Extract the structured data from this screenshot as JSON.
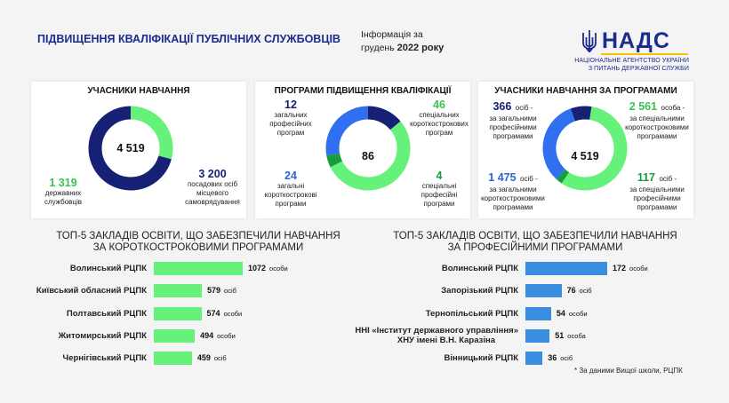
{
  "header": {
    "title": "ПІДВИЩЕННЯ КВАЛІФІКАЦІЇ ПУБЛІЧНИХ СЛУЖБОВЦІВ",
    "info_line1": "Інформація за",
    "info_line2_prefix": "грудень",
    "info_line2_bold": "2022 року"
  },
  "logo": {
    "name": "НАДС",
    "sub1": "НАЦІОНАЛЬНЕ АГЕНТСТВО УКРАЇНИ",
    "sub2": "З ПИТАНЬ ДЕРЖАВНОЇ СЛУЖБИ"
  },
  "colors": {
    "navy": "#162074",
    "green": "#66f27a",
    "blue": "#2f6ff0",
    "dark_green": "#169e3c",
    "bar_green": "#66f27a",
    "bar_blue": "#3a8ee0"
  },
  "panels": {
    "participants": {
      "title": "УЧАСНИКИ НАВЧАННЯ",
      "total": "4 519",
      "left_num": "1 319",
      "left_l1": "державних",
      "left_l2": "службовців",
      "right_num": "3 200",
      "right_l1": "посадових осіб",
      "right_l2": "місцевого",
      "right_l3": "самоврядування"
    },
    "programs": {
      "title": "ПРОГРАМИ ПІДВИЩЕННЯ КВАЛІФІКАЦІЇ",
      "total": "86",
      "tl_num": "12",
      "tl_l1": "загальних",
      "tl_l2": "професійних",
      "tl_l3": "програм",
      "tr_num": "46",
      "tr_l1": "спеціальних",
      "tr_l2": "короткострокових",
      "tr_l3": "програм",
      "bl_num": "24",
      "bl_l1": "загальні",
      "bl_l2": "короткострокові",
      "bl_l3": "програми",
      "br_num": "4",
      "br_l1": "спеціальні",
      "br_l2": "професійні",
      "br_l3": "програми"
    },
    "by_program": {
      "title": "УЧАСНИКИ НАВЧАННЯ ЗА ПРОГРАМАМИ",
      "total": "4 519",
      "tl_num": "366",
      "tl_suffix": "осіб -",
      "tl_l1": "за загальними",
      "tl_l2": "професійними",
      "tl_l3": "програмами",
      "tr_num": "2 561",
      "tr_suffix": "особа -",
      "tr_l1": "за спеціальними",
      "tr_l2": "короткостроковими",
      "tr_l3": "програмами",
      "bl_num": "1 475",
      "bl_suffix": "осіб -",
      "bl_l1": "за загальними",
      "bl_l2": "короткостроковими",
      "bl_l3": "програмами",
      "br_num": "117",
      "br_suffix": "осіб -",
      "br_l1": "за спеціальними",
      "br_l2": "професійними",
      "br_l3": "програмами"
    }
  },
  "sections": {
    "left_title1": "ТОП-5 ЗАКЛАДІВ ОСВІТИ, ЩО ЗАБЕЗПЕЧИЛИ НАВЧАННЯ",
    "left_title2": "ЗА КОРОТКОСТРОКОВИМИ ПРОГРАМАМИ",
    "right_title1": "ТОП-5 ЗАКЛАДІВ ОСВІТИ, ЩО ЗАБЕЗПЕЧИЛИ НАВЧАННЯ",
    "right_title2": "ЗА ПРОФЕСІЙНИМИ ПРОГРАМАМИ"
  },
  "footnote": "* За даними Вищої школи, РЦПК",
  "chart_data": [
    {
      "type": "pie",
      "title": "УЧАСНИКИ НАВЧАННЯ",
      "center": "4 519",
      "labels": [
        "державних службовців",
        "посадових осіб місцевого самоврядування"
      ],
      "values": [
        1319,
        3200
      ]
    },
    {
      "type": "pie",
      "title": "ПРОГРАМИ ПІДВИЩЕННЯ КВАЛІФІКАЦІЇ",
      "center": "86",
      "labels": [
        "загальних професійних програм",
        "спеціальних короткострокових програм",
        "спеціальні професійні програми",
        "загальні короткострокові програми"
      ],
      "values": [
        12,
        46,
        4,
        24
      ]
    },
    {
      "type": "pie",
      "title": "УЧАСНИКИ НАВЧАННЯ ЗА ПРОГРАМАМИ",
      "center": "4 519",
      "labels": [
        "за загальними професійними програмами",
        "за спеціальними короткостроковими програмами",
        "за спеціальними професійними програмами",
        "за загальними короткостроковими програмами"
      ],
      "values": [
        366,
        2561,
        117,
        1475
      ]
    },
    {
      "type": "bar",
      "title": "ТОП-5 ЗАКЛАДІВ ОСВІТИ, ЩО ЗАБЕЗПЕЧИЛИ НАВЧАННЯ ЗА КОРОТКОСТРОКОВИМИ ПРОГРАМАМИ",
      "categories": [
        "Волинський РЦПК",
        "Київський обласний РЦПК",
        "Полтавський РЦПК",
        "Житомирський РЦПК",
        "Чернігівський РЦПК"
      ],
      "values": [
        1072,
        579,
        574,
        494,
        459
      ],
      "units": [
        "особи",
        "осіб",
        "особи",
        "особи",
        "осіб"
      ]
    },
    {
      "type": "bar",
      "title": "ТОП-5 ЗАКЛАДІВ ОСВІТИ, ЩО ЗАБЕЗПЕЧИЛИ НАВЧАННЯ ЗА ПРОФЕСІЙНИМИ ПРОГРАМАМИ",
      "categories": [
        "Волинський РЦПК",
        "Запорізький РЦПК",
        "Тернопільський РЦПК",
        "ННІ «Інститут державного управління» ХНУ імені В.Н. Каразіна",
        "Вінницький РЦПК"
      ],
      "values": [
        172,
        76,
        54,
        51,
        36
      ],
      "units": [
        "особи",
        "осіб",
        "особи",
        "особа",
        "осіб"
      ]
    }
  ]
}
